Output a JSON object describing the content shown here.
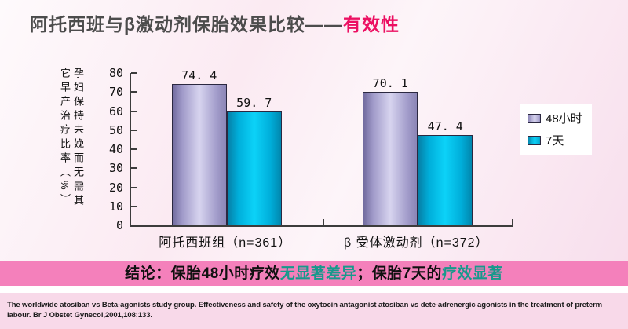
{
  "title": {
    "main": "阿托西班与β激动剂保胎效果比较——",
    "accent": "有效性"
  },
  "chart_data": {
    "type": "bar",
    "title": "",
    "ylabel": "孕妇保持未娩而无需其它早产治疗比率（%）",
    "xlabel": "",
    "categories": [
      "阿托西班组（n=361）",
      "β 受体激动剂（n=372）"
    ],
    "series": [
      {
        "name": "48小时",
        "color_key": "lavender",
        "values": [
          74.4,
          70.1
        ]
      },
      {
        "name": "7天",
        "color_key": "cyan",
        "values": [
          59.7,
          47.4
        ]
      }
    ],
    "ylim": [
      0,
      80
    ],
    "ytick_step": 10,
    "grid": false,
    "legend_position": "right"
  },
  "banner": {
    "segments": [
      {
        "text": "结论：保胎48小时疗效",
        "color": "#111111"
      },
      {
        "text": "无显著差异",
        "color": "#17998c"
      },
      {
        "text": "；保胎7天的",
        "color": "#111111"
      },
      {
        "text": "疗效显著",
        "color": "#17998c"
      }
    ]
  },
  "footnote": "The worldwide atosiban vs Beta-agonists study group. Effectiveness and safety of the oxytocin antagonist atosiban vs dete-adrenergic agonists in the treatment of preterm labour. Br J Obstet Gynecol,2001,108:133.",
  "colors": {
    "slide_bg": "#fbe9f1",
    "title_text": "#4c4c4c",
    "title_accent": "#ec1062",
    "bar_lavender": "#aba5d2",
    "bar_cyan": "#00b6e0",
    "axis": "#3c3c3c",
    "banner_bg": "#f480bb",
    "banner_highlight": "#17998c",
    "footnote_bg": "#f8d9e9"
  }
}
